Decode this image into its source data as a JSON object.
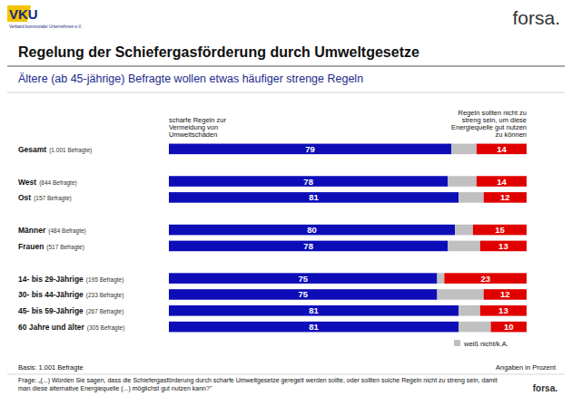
{
  "chart_data": {
    "type": "bar",
    "orientation": "horizontal",
    "stacked": true,
    "data_labels": true,
    "tick_labels": false,
    "legend": "bottom-right",
    "title": "Regelung der Schiefergasförderung durch Umweltgesetze",
    "subtitle": "Ältere (ab 45-jährige) Befragte wollen etwas häufiger strenge Regeln",
    "annotations": [
      "VKU",
      "Verband kommunaler Unternehmen e.V.",
      "forsa.",
      "Basis: 1.001 Befragte",
      "Angaben in Prozent",
      "Frage: „(...) Würden Sie sagen, dass die Schiefergasförderung durch scharfe Umweltgesetze geregelt werden sollte, oder sollten solche Regeln nicht zu streng sein, damit man diese alternative Energiequelle (...) möglichst gut nutzen kann?\"",
      "forsa."
    ],
    "categories": [
      "Gesamt",
      null,
      "West",
      "Ost",
      null,
      "Männer",
      "Frauen",
      null,
      "14- bis 29-Jährige",
      "30- bis 44-Jährige",
      "45- bis 59-Jährige",
      "60 Jahre und älter"
    ],
    "category_notes": [
      "(1.001 Befragte)",
      null,
      "(844 Befragte)",
      "(157 Befragte)",
      null,
      "(484 Befragte)",
      "(517 Befragte)",
      null,
      "(195 Befragte)",
      "(233 Befragte)",
      "(267 Befragte)",
      "(305 Befragte)"
    ],
    "xlim": [
      0,
      100
    ],
    "series": [
      {
        "name": "scharfe Regeln zur Vermeidung von Umweltschäden",
        "color": "#0d0db8",
        "values": [
          79,
          null,
          78,
          81,
          null,
          80,
          78,
          null,
          75,
          75,
          81,
          81
        ]
      },
      {
        "name": "weiß nicht/k.A.",
        "color": "#c0c0c0",
        "data_labels": false,
        "values": [
          7,
          null,
          8,
          7,
          null,
          5,
          9,
          null,
          2,
          13,
          6,
          9
        ]
      },
      {
        "name": "Regeln sollten nicht zu streng sein, um diese Energiequelle gut nutzen zu können",
        "color": "#e00000",
        "values": [
          14,
          null,
          14,
          12,
          null,
          15,
          13,
          null,
          23,
          12,
          13,
          10
        ]
      }
    ]
  }
}
